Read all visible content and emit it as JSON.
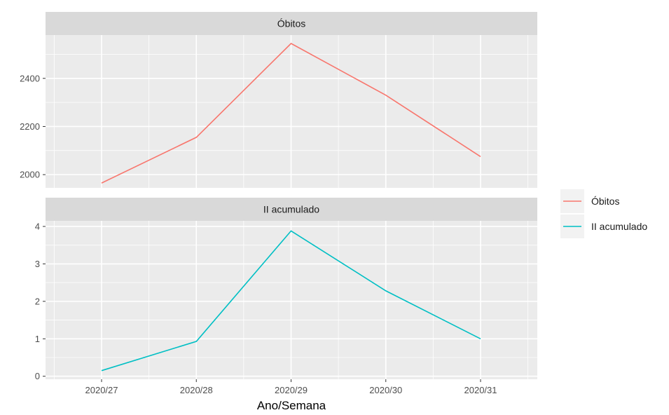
{
  "chart_data": {
    "type": "line",
    "categories": [
      "2020/27",
      "2020/28",
      "2020/29",
      "2020/30",
      "2020/31"
    ],
    "xlabel": "Ano/Semana",
    "panels": [
      {
        "strip": "Óbitos",
        "series_index": 0,
        "ylim": [
          1945,
          2580
        ],
        "yticks": [
          2000,
          2200,
          2400
        ],
        "yminor": [
          2100,
          2300,
          2500
        ]
      },
      {
        "strip": "II acumulado",
        "series_index": 1,
        "ylim": [
          -0.08,
          4.15
        ],
        "yticks": [
          0,
          1,
          2,
          3,
          4
        ],
        "yminor": [
          0.5,
          1.5,
          2.5,
          3.5
        ]
      }
    ],
    "series": [
      {
        "name": "Óbitos",
        "color": "#F8766D",
        "values": [
          1965,
          2155,
          2545,
          2330,
          2075
        ]
      },
      {
        "name": "II acumulado",
        "color": "#00BFC4",
        "values": [
          0.15,
          0.93,
          3.88,
          2.28,
          1.0
        ]
      }
    ],
    "legend": {
      "position": "right"
    },
    "grid": true,
    "theme": {
      "panel_bg": "#EBEBEB",
      "strip_bg": "#D9D9D9",
      "grid_color": "#FFFFFF"
    }
  }
}
